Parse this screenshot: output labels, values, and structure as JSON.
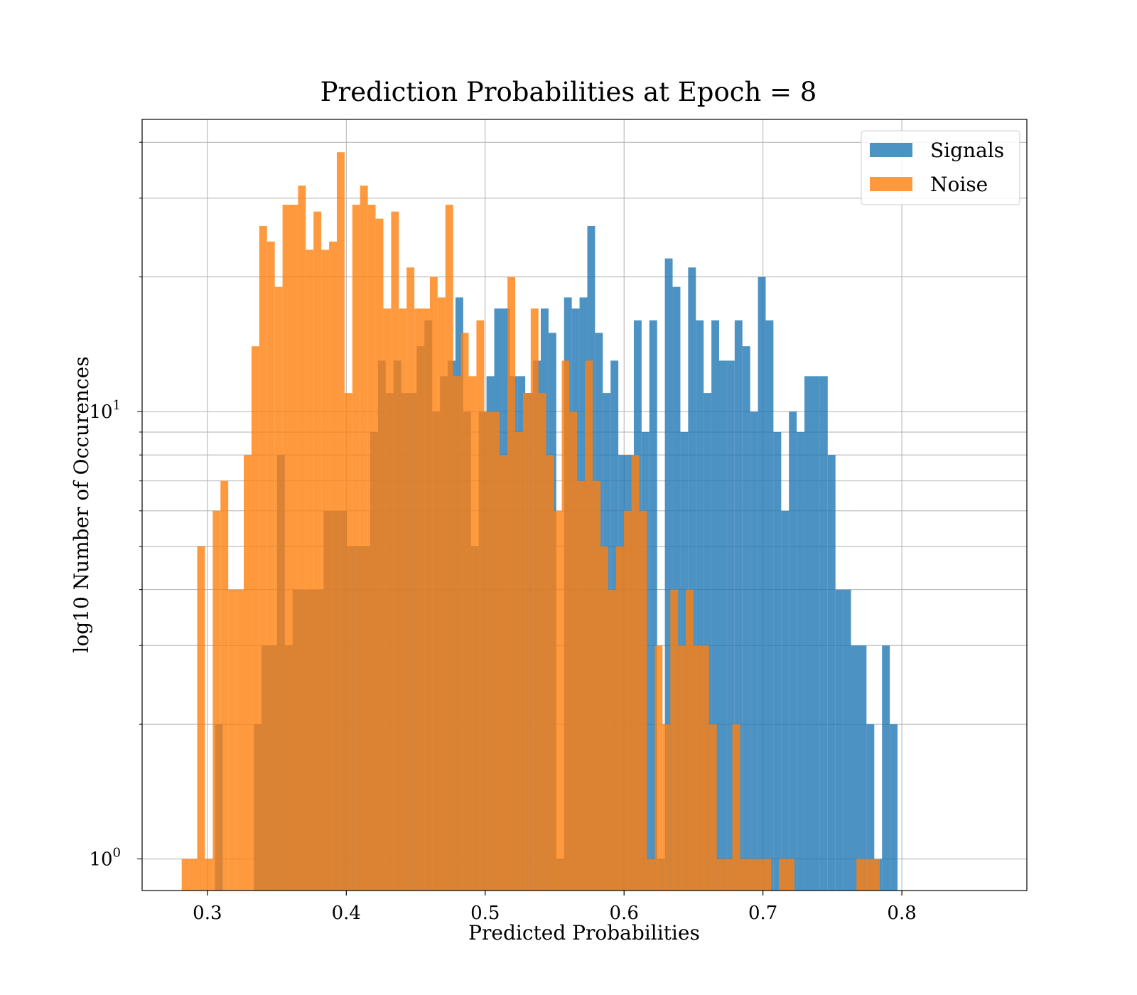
{
  "chart_data": {
    "type": "bar",
    "subtype": "histogram",
    "title": "Prediction Probabilities at Epoch = 8",
    "xlabel": "Predicted Probabilities",
    "ylabel": "log10 Number of Occurences",
    "xlim": [
      0.253,
      0.89
    ],
    "ylim": [
      0.85,
      45
    ],
    "yscale": "log",
    "grid": true,
    "legend_position": "top-right",
    "xticks": [
      {
        "value": 0.3,
        "label": "0.3"
      },
      {
        "value": 0.4,
        "label": "0.4"
      },
      {
        "value": 0.5,
        "label": "0.5"
      },
      {
        "value": 0.6,
        "label": "0.6"
      },
      {
        "value": 0.7,
        "label": "0.7"
      },
      {
        "value": 0.8,
        "label": "0.8"
      }
    ],
    "yticks": [
      {
        "value": 1,
        "base": "10",
        "exp": "0"
      },
      {
        "value": 10,
        "base": "10",
        "exp": "1"
      }
    ],
    "series": [
      {
        "name": "Signals",
        "color": "#1f77b4",
        "opacity": 0.8,
        "bin_start": 0.3055,
        "bin_width": 0.005584,
        "values": [
          2,
          0,
          0,
          0,
          0,
          2,
          3,
          3,
          8,
          3,
          4,
          4,
          4,
          4,
          6,
          6,
          6,
          5,
          5,
          5,
          9,
          13,
          11,
          13,
          11,
          11,
          14,
          16,
          10,
          12,
          13,
          18,
          10,
          5,
          10,
          12,
          17,
          17,
          12,
          12,
          11,
          13,
          17,
          15,
          1,
          18,
          17,
          18,
          26,
          15,
          11,
          13,
          8,
          8,
          16,
          9,
          16,
          1,
          22,
          19,
          9,
          21,
          16,
          11,
          16,
          13,
          13,
          16,
          14,
          10,
          20,
          16,
          9,
          6,
          10,
          9,
          12,
          12,
          12,
          8,
          4,
          4,
          3,
          3,
          2,
          1,
          3,
          2
        ]
      },
      {
        "name": "Noise",
        "color": "#ff7f0e",
        "opacity": 0.8,
        "bin_start": 0.2815,
        "bin_width": 0.005584,
        "values": [
          1,
          1,
          5,
          1,
          6,
          7,
          4,
          4,
          8,
          14,
          26,
          24,
          19,
          29,
          29,
          32,
          23,
          28,
          23,
          24,
          38,
          11,
          29,
          32,
          29,
          27,
          17,
          28,
          17,
          21,
          17,
          17,
          20,
          18,
          29,
          12,
          15,
          12,
          16,
          10,
          10,
          8,
          20,
          9,
          11,
          17,
          11,
          8,
          6,
          13,
          10,
          7,
          13,
          7,
          5,
          4,
          5,
          6,
          8,
          6,
          1,
          3,
          2,
          4,
          3,
          4,
          3,
          3,
          2,
          1,
          1,
          2,
          1,
          1,
          1,
          1,
          0,
          1,
          1,
          0,
          0,
          0,
          0,
          0,
          0,
          0,
          0,
          1,
          1,
          1
        ]
      }
    ]
  }
}
